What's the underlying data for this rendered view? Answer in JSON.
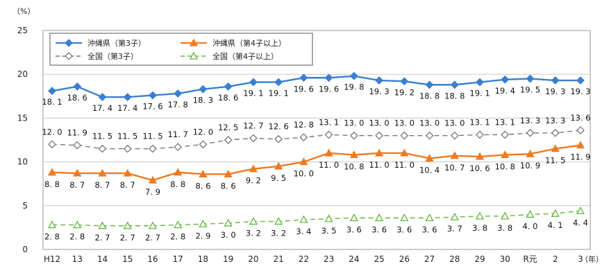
{
  "chart_data": {
    "type": "line",
    "y_unit": "（%）",
    "x_unit": "（年）",
    "ylim": [
      0,
      25
    ],
    "yticks": [
      0,
      5,
      10,
      15,
      20,
      25
    ],
    "grid": true,
    "legend_position": "top-left",
    "categories": [
      "H12",
      "13",
      "14",
      "15",
      "16",
      "17",
      "18",
      "19",
      "20",
      "21",
      "22",
      "23",
      "24",
      "25",
      "26",
      "27",
      "28",
      "29",
      "30",
      "R元",
      "2",
      "3"
    ],
    "series": [
      {
        "name": "沖縄県（第3子）",
        "color": "#3a7fcf",
        "marker": "filled-diamond",
        "dashed": false,
        "values": [
          18.1,
          18.6,
          17.4,
          17.4,
          17.6,
          17.8,
          18.3,
          18.6,
          19.1,
          19.1,
          19.6,
          19.6,
          19.8,
          19.3,
          19.2,
          18.8,
          18.8,
          19.1,
          19.4,
          19.5,
          19.3,
          19.3
        ],
        "labels": [
          "18. 1",
          "18. 6",
          "17. 4",
          "17. 4",
          "17. 6",
          "17. 8",
          "18. 3",
          "18. 6",
          "19. 1",
          "19. 1",
          "19. 6",
          "19. 6",
          "19. 8",
          "19. 3",
          "19. 2",
          "18. 8",
          "18. 8",
          "19. 1",
          "19. 4",
          "19. 5",
          "19. 3",
          "19. 3"
        ]
      },
      {
        "name": "沖縄県（第4子以上）",
        "color": "#ee7a22",
        "marker": "filled-triangle",
        "dashed": false,
        "values": [
          8.8,
          8.7,
          8.7,
          8.7,
          7.9,
          8.8,
          8.6,
          8.6,
          9.2,
          9.5,
          10.0,
          11.0,
          10.8,
          11.0,
          11.0,
          10.4,
          10.7,
          10.6,
          10.8,
          10.9,
          11.5,
          11.9
        ],
        "labels": [
          "8. 8",
          "8. 7",
          "8. 7",
          "8. 7",
          "7. 9",
          "8. 8",
          "8. 6",
          "8. 6",
          "9. 2",
          "9. 5",
          "10. 0",
          "11. 0",
          "10. 8",
          "11. 0",
          "11. 0",
          "10. 4",
          "10. 7",
          "10. 6",
          "10. 8",
          "10. 9",
          "11. 5",
          "11. 9"
        ]
      },
      {
        "name": "全国（第3子）",
        "color": "#777777",
        "marker": "open-diamond",
        "dashed": true,
        "values": [
          12.0,
          11.9,
          11.5,
          11.5,
          11.5,
          11.7,
          12.0,
          12.5,
          12.7,
          12.6,
          12.8,
          13.1,
          13.0,
          13.0,
          13.0,
          13.0,
          13.0,
          13.1,
          13.1,
          13.3,
          13.3,
          13.6
        ],
        "labels": [
          "12. 0",
          "11. 9",
          "11. 5",
          "11. 5",
          "11. 5",
          "11. 7",
          "12. 0",
          "12. 5",
          "12. 7",
          "12. 6",
          "12. 8",
          "13. 1",
          "13. 0",
          "13. 0",
          "13. 0",
          "13. 0",
          "13. 0",
          "13. 1",
          "13. 1",
          "13. 3",
          "13. 3",
          "13. 6"
        ]
      },
      {
        "name": "全国（第4子以上）",
        "color": "#5db83a",
        "marker": "open-triangle",
        "dashed": true,
        "values": [
          2.8,
          2.8,
          2.7,
          2.7,
          2.7,
          2.8,
          2.9,
          3.0,
          3.2,
          3.2,
          3.4,
          3.5,
          3.6,
          3.6,
          3.6,
          3.6,
          3.7,
          3.8,
          3.8,
          4.0,
          4.1,
          4.4
        ],
        "labels": [
          "2. 8",
          "2. 8",
          "2. 7",
          "2. 7",
          "2. 7",
          "2. 8",
          "2. 9",
          "3. 0",
          "3. 2",
          "3. 2",
          "3. 4",
          "3. 5",
          "3. 6",
          "3. 6",
          "3. 6",
          "3. 6",
          "3. 7",
          "3. 8",
          "3. 8",
          "4. 0",
          "4. 1",
          "4. 4"
        ]
      }
    ]
  }
}
